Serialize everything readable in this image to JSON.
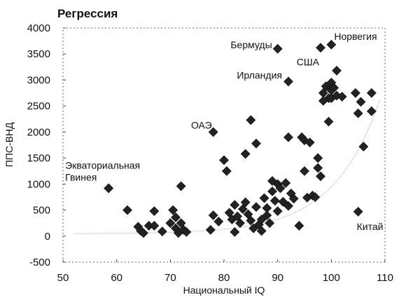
{
  "chart_data": {
    "type": "scatter",
    "title": "Регрессия",
    "xlabel": "Национальный IQ",
    "ylabel": "ППС-ВНД",
    "xlim": [
      50,
      110
    ],
    "ylim": [
      -500,
      4000
    ],
    "xticks": [
      50,
      60,
      70,
      80,
      90,
      100,
      110
    ],
    "yticks": [
      4000,
      3500,
      3000,
      2500,
      2000,
      1500,
      1000,
      500,
      0,
      -500
    ],
    "xtick_labels": [
      "50",
      "60",
      "70",
      "80",
      "90",
      "100",
      "110"
    ],
    "ytick_labels": [
      "4000",
      "3500",
      "3000",
      "2500",
      "2000",
      "1500",
      "1000",
      "500",
      "0",
      "-500"
    ],
    "grid": "dotted-frame",
    "marker": "diamond",
    "marker_color": "#222222",
    "trend_color": "#999999",
    "points": [
      [
        58.5,
        920
      ],
      [
        62,
        500
      ],
      [
        64,
        180
      ],
      [
        64.5,
        100
      ],
      [
        65,
        60
      ],
      [
        66,
        200
      ],
      [
        67,
        480
      ],
      [
        67,
        200
      ],
      [
        68.5,
        90
      ],
      [
        70,
        250
      ],
      [
        70.5,
        500
      ],
      [
        71,
        360
      ],
      [
        71,
        150
      ],
      [
        71.5,
        60
      ],
      [
        72,
        960
      ],
      [
        72,
        250
      ],
      [
        72.5,
        120
      ],
      [
        73,
        80
      ],
      [
        77.5,
        120
      ],
      [
        78,
        400
      ],
      [
        79,
        280
      ],
      [
        80,
        1460
      ],
      [
        80.5,
        1250
      ],
      [
        81,
        450
      ],
      [
        81.5,
        320
      ],
      [
        82,
        600
      ],
      [
        82,
        80
      ],
      [
        82.5,
        380
      ],
      [
        83,
        250
      ],
      [
        83.5,
        520
      ],
      [
        84,
        650
      ],
      [
        84,
        1580
      ],
      [
        84.5,
        420
      ],
      [
        85,
        300
      ],
      [
        85,
        2230
      ],
      [
        85.5,
        150
      ],
      [
        86,
        560
      ],
      [
        86,
        1780
      ],
      [
        86.5,
        220
      ],
      [
        87,
        320
      ],
      [
        87,
        100
      ],
      [
        87.5,
        730
      ],
      [
        88,
        540
      ],
      [
        88,
        400
      ],
      [
        88.5,
        250
      ],
      [
        89,
        860
      ],
      [
        89,
        1060
      ],
      [
        89.5,
        680
      ],
      [
        90,
        1000
      ],
      [
        90,
        480
      ],
      [
        90.5,
        920
      ],
      [
        91,
        660
      ],
      [
        91.5,
        1020
      ],
      [
        92,
        1900
      ],
      [
        92,
        580
      ],
      [
        92.5,
        820
      ],
      [
        93,
        720
      ],
      [
        94,
        200
      ],
      [
        94.5,
        1900
      ],
      [
        95,
        1840
      ],
      [
        95,
        1250
      ],
      [
        95.5,
        740
      ],
      [
        96,
        1800
      ],
      [
        96.5,
        780
      ],
      [
        97,
        750
      ],
      [
        97.5,
        1310
      ],
      [
        97.5,
        1500
      ],
      [
        98,
        1150
      ],
      [
        98.5,
        2600
      ],
      [
        98.5,
        2750
      ],
      [
        99,
        2880
      ],
      [
        99.5,
        2650
      ],
      [
        99.5,
        2200
      ],
      [
        100,
        2800
      ],
      [
        100,
        2950
      ],
      [
        100,
        2650
      ],
      [
        100.5,
        2850
      ],
      [
        101,
        2700
      ],
      [
        101,
        3180
      ],
      [
        102,
        2680
      ],
      [
        104.5,
        2750
      ],
      [
        105,
        2360
      ],
      [
        105.5,
        2580
      ],
      [
        106,
        1720
      ],
      [
        107.5,
        2750
      ],
      [
        107.5,
        2400
      ]
    ],
    "labeled_points": [
      {
        "name": "Бермуды",
        "x": 90,
        "y": 3600
      },
      {
        "name": "Норвегия",
        "x": 100,
        "y": 3680
      },
      {
        "name": "США",
        "x": 98,
        "y": 3620
      },
      {
        "name": "Ирландия",
        "x": 92,
        "y": 2970
      },
      {
        "name": "ОАЭ",
        "x": 78,
        "y": 2000
      },
      {
        "name": "Экваториальная Гвинея",
        "x": 58.5,
        "y": 920
      },
      {
        "name": "Китай",
        "x": 105,
        "y": 470
      }
    ],
    "annotations": [
      {
        "text": "Бермуды",
        "anchor": "left-of-point"
      },
      {
        "text": "Норвегия",
        "anchor": "upper-right-of-point"
      },
      {
        "text": "США",
        "anchor": "below-left-of-point"
      },
      {
        "text": "Ирландия",
        "anchor": "left-of-point"
      },
      {
        "text": "ОАЭ",
        "anchor": "upper-left-of-point"
      },
      {
        "text": "Экваториальная",
        "anchor": "above-point-line1"
      },
      {
        "text": "Гвинея",
        "anchor": "above-point-line2"
      },
      {
        "text": "Китай",
        "anchor": "below-right-of-point"
      }
    ]
  }
}
